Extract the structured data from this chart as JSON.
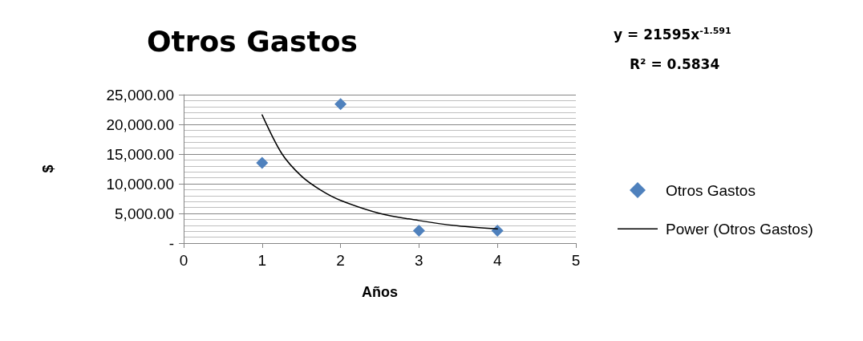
{
  "chart_data": {
    "type": "scatter",
    "title": "Otros Gastos",
    "xlabel": "Años",
    "ylabel": "$",
    "annotations": [
      "y = 21595x$^{-1.591}$",
      "R² = 0.5834"
    ],
    "x": [
      1,
      2,
      3,
      4
    ],
    "series": [
      {
        "name": "Otros Gastos",
        "type": "scatter",
        "color": "#4f81bd",
        "marker": "diamond",
        "values": [
          13500,
          23400,
          2100,
          2100
        ]
      },
      {
        "name": "Power (Otros Gastos)",
        "type": "line",
        "color": "#000000",
        "marker": "none",
        "line_style": "solid",
        "x": [
          1,
          1.25,
          1.5,
          1.75,
          2,
          2.5,
          3,
          3.5,
          4
        ],
        "values": [
          21600,
          15100,
          11300,
          8900,
          7200,
          5000,
          3800,
          2900,
          2400
        ]
      }
    ],
    "xlim": [
      0,
      5
    ],
    "xticks": [
      0,
      1,
      2,
      3,
      4,
      5
    ],
    "ylim": [
      0,
      25000
    ],
    "yticks": [
      {
        "value": 0,
        "label": "-"
      },
      {
        "value": 5000,
        "label": "5,000.00"
      },
      {
        "value": 10000,
        "label": "10,000.00"
      },
      {
        "value": 15000,
        "label": "15,000.00"
      },
      {
        "value": 20000,
        "label": "20,000.00"
      },
      {
        "value": 25000,
        "label": "25,000.00"
      }
    ],
    "grid": "y",
    "legend": "right"
  }
}
